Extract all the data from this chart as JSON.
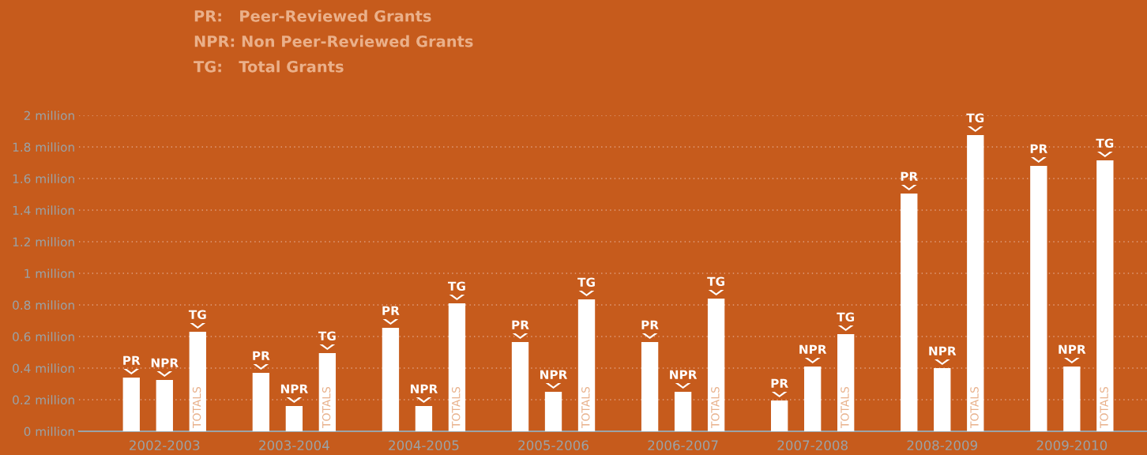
{
  "chart_data": {
    "type": "bar",
    "categories": [
      "2002-2003",
      "2003-2004",
      "2004-2005",
      "2005-2006",
      "2006-2007",
      "2007-2008",
      "2008-2009",
      "2009-2010"
    ],
    "series": [
      {
        "name": "PR",
        "color": "#ffffff",
        "values": [
          0.34,
          0.37,
          0.655,
          0.565,
          0.565,
          0.195,
          1.505,
          1.68
        ]
      },
      {
        "name": "NPR",
        "color": "#ffffff",
        "values": [
          0.325,
          0.16,
          0.16,
          0.25,
          0.25,
          0.41,
          0.4,
          0.41
        ]
      },
      {
        "name": "TG",
        "color": "#ffffff",
        "values": [
          0.63,
          0.495,
          0.81,
          0.835,
          0.84,
          0.615,
          1.875,
          1.715
        ]
      }
    ],
    "ylim": [
      0,
      2
    ],
    "yticks": [
      {
        "value": 0,
        "label": "0 million"
      },
      {
        "value": 0.2,
        "label": "0.2 million"
      },
      {
        "value": 0.4,
        "label": "0.4 million"
      },
      {
        "value": 0.6,
        "label": "0.6 million"
      },
      {
        "value": 0.8,
        "label": "0.8 million"
      },
      {
        "value": 1,
        "label": "1 million"
      },
      {
        "value": 1.2,
        "label": "1.2 million"
      },
      {
        "value": 1.4,
        "label": "1.4 million"
      },
      {
        "value": 1.6,
        "label": "1.6 million"
      },
      {
        "value": 1.8,
        "label": "1.8 million"
      },
      {
        "value": 2,
        "label": "2 million"
      }
    ],
    "grid": "y",
    "legend": false,
    "annotations": [
      "PR:   Peer-Reviewed Grants",
      "NPR: Non Peer-Reviewed Grants",
      "TG:   Total Grants",
      "TOTALS",
      "TOTALS",
      "TOTALS",
      "TOTALS",
      "TOTALS",
      "TOTALS",
      "TOTALS",
      "TOTALS"
    ]
  }
}
